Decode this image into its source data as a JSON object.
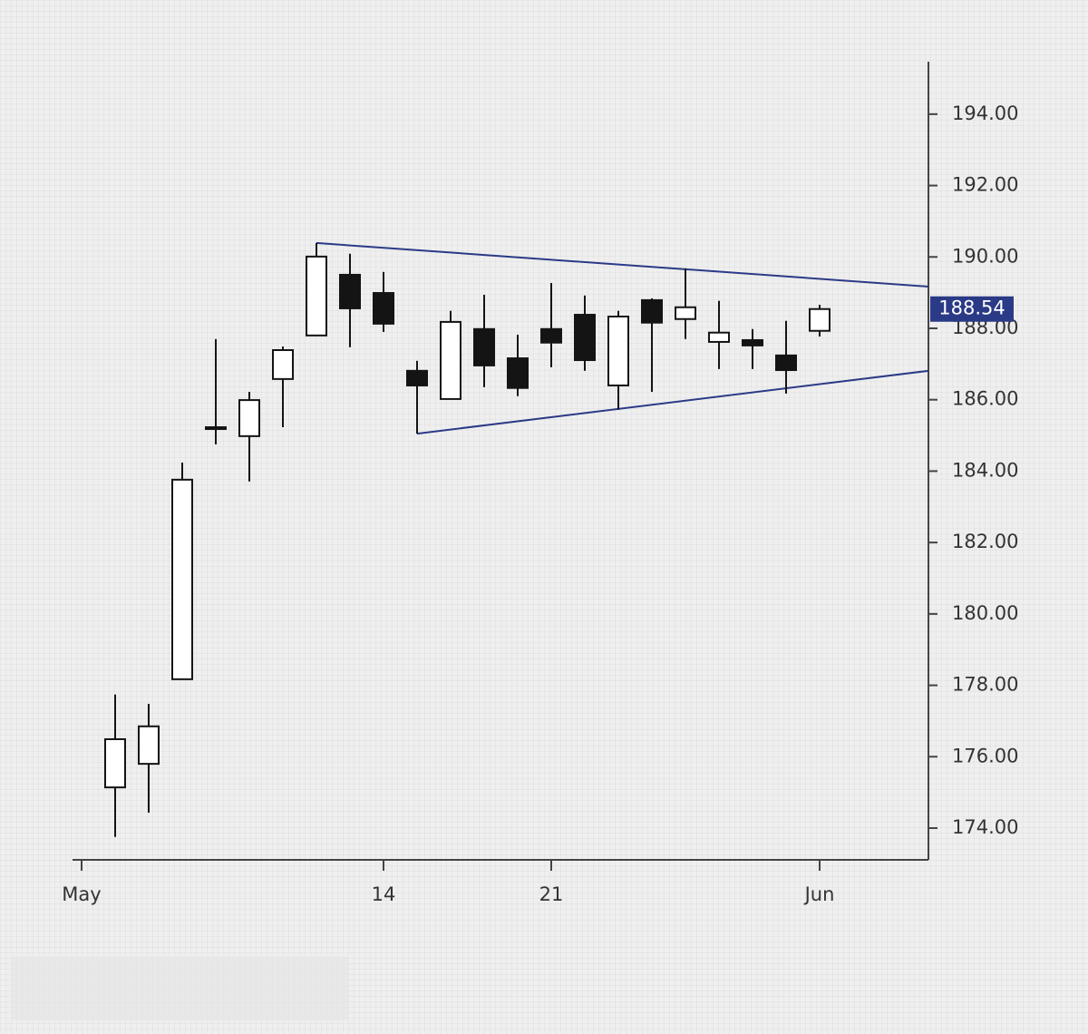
{
  "chart_data": {
    "type": "candlestick",
    "categories": [
      "May",
      null,
      null,
      null,
      null,
      null,
      null,
      null,
      null,
      "14",
      null,
      null,
      null,
      null,
      "21",
      null,
      null,
      null,
      null,
      null,
      null,
      null,
      "Jun"
    ],
    "open": [
      null,
      175.14,
      175.8,
      178.17,
      185.18,
      184.98,
      186.58,
      187.8,
      189.5,
      188.99,
      186.81,
      186.02,
      187.98,
      187.16,
      187.98,
      188.38,
      186.4,
      188.79,
      188.26,
      187.62,
      187.67,
      187.24,
      187.93
    ],
    "high": [
      null,
      177.74,
      177.48,
      184.24,
      187.7,
      186.22,
      187.49,
      190.39,
      190.09,
      189.58,
      187.09,
      188.49,
      188.94,
      187.82,
      189.27,
      188.92,
      188.49,
      188.84,
      189.68,
      188.77,
      187.98,
      188.21,
      188.66
    ],
    "low": [
      null,
      173.75,
      174.43,
      178.17,
      184.75,
      183.71,
      185.23,
      187.8,
      187.47,
      187.9,
      185.05,
      186.02,
      186.35,
      186.1,
      186.91,
      186.81,
      185.72,
      186.22,
      187.7,
      186.86,
      186.86,
      186.17,
      187.77
    ],
    "close": [
      null,
      176.49,
      176.85,
      183.76,
      185.23,
      185.99,
      187.39,
      190.01,
      188.56,
      188.13,
      186.4,
      188.18,
      186.96,
      186.33,
      187.6,
      187.11,
      188.33,
      188.16,
      188.59,
      187.88,
      187.52,
      186.83,
      188.54
    ],
    "up_color": "#ffffff",
    "down_color": "#141414",
    "ylim": [
      173.11,
      195.47
    ],
    "yticks": [
      {
        "value": 174,
        "label": "174.00"
      },
      {
        "value": 176,
        "label": "176.00"
      },
      {
        "value": 178,
        "label": "178.00"
      },
      {
        "value": 180,
        "label": "180.00"
      },
      {
        "value": 182,
        "label": "182.00"
      },
      {
        "value": 184,
        "label": "184.00"
      },
      {
        "value": 186,
        "label": "186.00"
      },
      {
        "value": 188,
        "label": "188.00"
      },
      {
        "value": 190,
        "label": "190.00"
      },
      {
        "value": 192,
        "label": "192.00"
      },
      {
        "value": 194,
        "label": "194.00"
      }
    ],
    "trendlines": [
      {
        "start": 7,
        "values": [
          190.39,
          189.17
        ]
      },
      {
        "start": 10,
        "values": [
          185.05,
          186.81
        ]
      }
    ],
    "line_color": "#2b3a87",
    "last_price": 188.54
  }
}
